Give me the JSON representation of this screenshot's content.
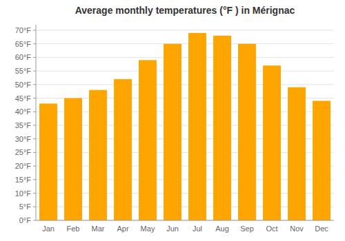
{
  "chart_data": {
    "type": "bar",
    "title": "Average monthly temperatures (°F ) in Mérignac",
    "categories": [
      "Jan",
      "Feb",
      "Mar",
      "Apr",
      "May",
      "Jun",
      "Jul",
      "Aug",
      "Sep",
      "Oct",
      "Nov",
      "Dec"
    ],
    "values": [
      43,
      45,
      48,
      52,
      59,
      65,
      69,
      68,
      65,
      57,
      49,
      44
    ],
    "color": "#FFA500",
    "ylim": [
      0,
      72
    ],
    "yticks": [
      {
        "value": 0,
        "label": "0°F"
      },
      {
        "value": 5,
        "label": "5°F"
      },
      {
        "value": 10,
        "label": "10°F"
      },
      {
        "value": 15,
        "label": "15°F"
      },
      {
        "value": 20,
        "label": "20°F"
      },
      {
        "value": 25,
        "label": "25°F"
      },
      {
        "value": 30,
        "label": "30°F"
      },
      {
        "value": 35,
        "label": "35°F"
      },
      {
        "value": 40,
        "label": "40°F"
      },
      {
        "value": 45,
        "label": "45°F"
      },
      {
        "value": 50,
        "label": "50°F"
      },
      {
        "value": 55,
        "label": "55°F"
      },
      {
        "value": 60,
        "label": "60°F"
      },
      {
        "value": 65,
        "label": "65°F"
      },
      {
        "value": 70,
        "label": "70°F"
      }
    ],
    "grid": true
  }
}
